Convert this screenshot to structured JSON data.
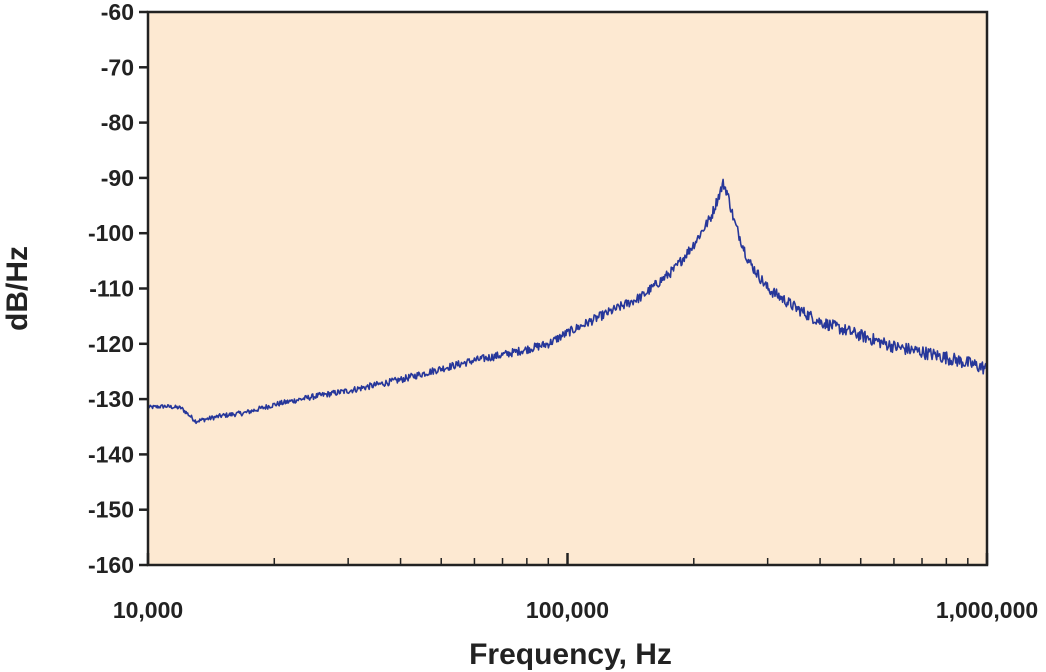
{
  "chart_data": {
    "type": "line",
    "title": "",
    "xlabel": "Frequency, Hz",
    "ylabel": "dB/Hz",
    "xscale": "log",
    "xlim": [
      10000,
      1000000
    ],
    "ylim": [
      -160,
      -60
    ],
    "x_ticks": [
      10000,
      100000,
      1000000
    ],
    "x_tick_labels": [
      "10,000",
      "100,000",
      "1,000,000"
    ],
    "y_ticks": [
      -60,
      -70,
      -80,
      -90,
      -100,
      -110,
      -120,
      -130,
      -140,
      -150,
      -160
    ],
    "y_tick_labels": [
      "-60",
      "-70",
      "-80",
      "-90",
      "-100",
      "-110",
      "-120",
      "-130",
      "-140",
      "-150",
      "-160"
    ],
    "grid": false,
    "legend": "none",
    "colors": {
      "plot_background": "#fde9d2",
      "line": "#27379a",
      "axis": "#222222",
      "text": "#222222"
    },
    "series": [
      {
        "x": [
          10000,
          11000,
          12000,
          13000,
          14000,
          15000,
          17000,
          20000,
          25000,
          30000,
          40000,
          50000,
          60000,
          70000,
          80000,
          90000,
          100000,
          120000,
          150000,
          180000,
          200000,
          220000,
          230000,
          235000,
          240000,
          250000,
          270000,
          300000,
          350000,
          400000,
          500000,
          600000,
          700000,
          800000,
          900000,
          1000000
        ],
        "y": [
          -131.5,
          -131.3,
          -131.6,
          -134,
          -133.5,
          -133,
          -132.5,
          -131,
          -129.5,
          -128.5,
          -126.5,
          -124.5,
          -123,
          -122,
          -121,
          -120,
          -118,
          -115,
          -111.5,
          -106.5,
          -102,
          -97,
          -93,
          -91,
          -92.5,
          -98,
          -105,
          -110,
          -113.5,
          -116,
          -118.5,
          -120.5,
          -121.5,
          -122.5,
          -123.5,
          -124.5
        ]
      }
    ]
  }
}
